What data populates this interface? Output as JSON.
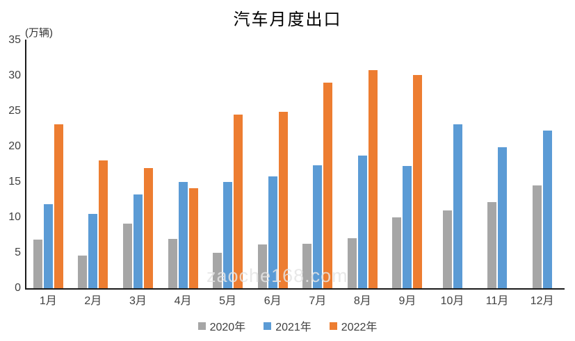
{
  "chart": {
    "title": "汽车月度出口",
    "unit_label": "(万辆)",
    "watermark": "zaoche168.com"
  },
  "chart_data": {
    "type": "bar",
    "title": "汽车月度出口",
    "xlabel": "",
    "ylabel": "(万辆)",
    "ylim": [
      0,
      35
    ],
    "yticks": [
      0,
      5,
      10,
      15,
      20,
      25,
      30,
      35
    ],
    "grid": false,
    "legend_position": "bottom",
    "categories": [
      "1月",
      "2月",
      "3月",
      "4月",
      "5月",
      "6月",
      "7月",
      "8月",
      "9月",
      "10月",
      "11月",
      "12月"
    ],
    "series": [
      {
        "name": "2020年",
        "color": "#A6A6A6",
        "values": [
          6.9,
          4.6,
          9.1,
          7.0,
          5.0,
          6.2,
          6.3,
          7.1,
          10.0,
          11.0,
          12.2,
          14.5
        ]
      },
      {
        "name": "2021年",
        "color": "#5B9BD5",
        "values": [
          11.9,
          10.5,
          13.2,
          15.0,
          15.0,
          15.8,
          17.4,
          18.7,
          17.3,
          23.1,
          19.9,
          22.3
        ]
      },
      {
        "name": "2022年",
        "color": "#ED7D31",
        "values": [
          23.1,
          18.0,
          17.0,
          14.1,
          24.5,
          24.9,
          29.0,
          30.8,
          30.1,
          null,
          null,
          null
        ]
      }
    ]
  }
}
